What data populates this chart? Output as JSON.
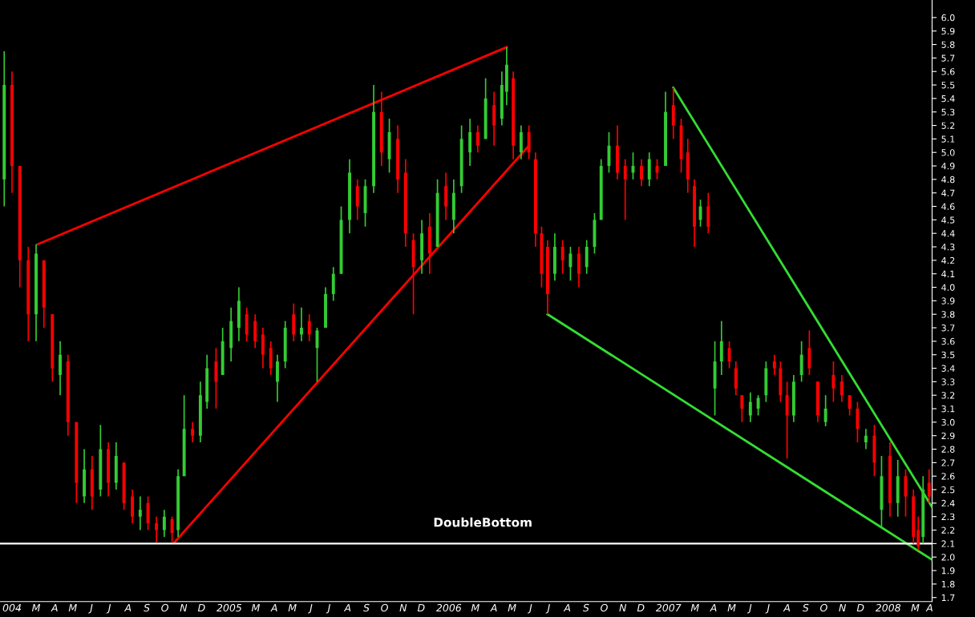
{
  "chart_data": {
    "type": "candlestick",
    "x": [
      "2004-01-17",
      "2004-01-30",
      "2004-02-12",
      "2004-02-26",
      "2004-03-10",
      "2004-03-23",
      "2004-04-06",
      "2004-04-19",
      "2004-05-02",
      "2004-05-16",
      "2004-05-29",
      "2004-06-11",
      "2004-06-25",
      "2004-07-08",
      "2004-07-21",
      "2004-08-03",
      "2004-08-17",
      "2004-08-30",
      "2004-09-12",
      "2004-09-26",
      "2004-10-09",
      "2004-10-22",
      "2004-11-01",
      "2004-11-11",
      "2004-11-25",
      "2004-12-08",
      "2004-12-19",
      "2005-01-03",
      "2005-01-14",
      "2005-01-28",
      "2005-02-10",
      "2005-02-23",
      "2005-03-09",
      "2005-03-22",
      "2005-04-04",
      "2005-04-15",
      "2005-04-28",
      "2005-05-12",
      "2005-05-25",
      "2005-06-07",
      "2005-06-20",
      "2005-07-04",
      "2005-07-17",
      "2005-07-30",
      "2005-08-13",
      "2005-08-26",
      "2005-09-08",
      "2005-09-22",
      "2005-10-05",
      "2005-10-18",
      "2005-11-01",
      "2005-11-14",
      "2005-11-27",
      "2005-12-11",
      "2005-12-24",
      "2006-01-06",
      "2006-01-20",
      "2006-02-02",
      "2006-02-15",
      "2006-03-01",
      "2006-03-14",
      "2006-03-27",
      "2006-04-10",
      "2006-04-23",
      "2006-05-01",
      "2006-05-12",
      "2006-05-25",
      "2006-06-07",
      "2006-06-18",
      "2006-06-28",
      "2006-07-08",
      "2006-07-20",
      "2006-08-02",
      "2006-08-15",
      "2006-08-29",
      "2006-09-11",
      "2006-09-24",
      "2006-10-05",
      "2006-10-18",
      "2006-11-01",
      "2006-11-14",
      "2006-11-27",
      "2006-12-11",
      "2006-12-24",
      "2007-01-06",
      "2007-01-20",
      "2007-02-02",
      "2007-02-15",
      "2007-02-26",
      "2007-03-09",
      "2007-03-19",
      "2007-04-01",
      "2007-04-12",
      "2007-04-23",
      "2007-05-06",
      "2007-05-17",
      "2007-05-27",
      "2007-06-10",
      "2007-06-23",
      "2007-07-06",
      "2007-07-20",
      "2007-07-30",
      "2007-08-10",
      "2007-08-21",
      "2007-09-03",
      "2007-09-16",
      "2007-09-30",
      "2007-10-13",
      "2007-10-26",
      "2007-11-09",
      "2007-11-22",
      "2007-12-05",
      "2007-12-19",
      "2008-01-02",
      "2008-01-14",
      "2008-01-28",
      "2008-02-10",
      "2008-02-23",
      "2008-03-07",
      "2008-03-15",
      "2008-03-23",
      "2008-04-02"
    ],
    "ohlc": [
      [
        4.8,
        5.75,
        4.6,
        5.5
      ],
      [
        5.5,
        5.6,
        4.7,
        4.9
      ],
      [
        4.9,
        4.9,
        4.0,
        4.2
      ],
      [
        4.2,
        4.3,
        3.6,
        3.8
      ],
      [
        3.8,
        4.32,
        3.6,
        4.25
      ],
      [
        4.2,
        4.2,
        3.7,
        3.85
      ],
      [
        3.8,
        3.8,
        3.3,
        3.4
      ],
      [
        3.35,
        3.6,
        3.2,
        3.5
      ],
      [
        3.45,
        3.5,
        2.9,
        3.0
      ],
      [
        3.0,
        3.0,
        2.4,
        2.55
      ],
      [
        2.45,
        2.8,
        2.4,
        2.65
      ],
      [
        2.65,
        2.75,
        2.35,
        2.45
      ],
      [
        2.5,
        2.98,
        2.45,
        2.8
      ],
      [
        2.8,
        2.85,
        2.45,
        2.55
      ],
      [
        2.55,
        2.85,
        2.5,
        2.75
      ],
      [
        2.7,
        2.7,
        2.35,
        2.4
      ],
      [
        2.45,
        2.5,
        2.25,
        2.3
      ],
      [
        2.3,
        2.45,
        2.2,
        2.35
      ],
      [
        2.4,
        2.45,
        2.2,
        2.25
      ],
      [
        2.25,
        2.3,
        2.11,
        2.2
      ],
      [
        2.2,
        2.35,
        2.15,
        2.3
      ],
      [
        2.28,
        2.3,
        2.11,
        2.18
      ],
      [
        2.2,
        2.65,
        2.15,
        2.6
      ],
      [
        2.6,
        3.2,
        2.6,
        2.95
      ],
      [
        2.95,
        3.0,
        2.85,
        2.9
      ],
      [
        2.9,
        3.3,
        2.85,
        3.2
      ],
      [
        3.15,
        3.5,
        3.1,
        3.4
      ],
      [
        3.45,
        3.55,
        3.1,
        3.3
      ],
      [
        3.35,
        3.7,
        3.35,
        3.6
      ],
      [
        3.55,
        3.85,
        3.45,
        3.75
      ],
      [
        3.7,
        4.0,
        3.6,
        3.9
      ],
      [
        3.8,
        3.85,
        3.6,
        3.65
      ],
      [
        3.75,
        3.8,
        3.55,
        3.6
      ],
      [
        3.65,
        3.7,
        3.4,
        3.5
      ],
      [
        3.55,
        3.6,
        3.35,
        3.4
      ],
      [
        3.3,
        3.5,
        3.15,
        3.45
      ],
      [
        3.45,
        3.75,
        3.4,
        3.7
      ],
      [
        3.8,
        3.88,
        3.6,
        3.65
      ],
      [
        3.65,
        3.85,
        3.6,
        3.7
      ],
      [
        3.75,
        3.8,
        3.6,
        3.65
      ],
      [
        3.55,
        3.7,
        3.3,
        3.68
      ],
      [
        3.7,
        4.0,
        3.7,
        3.95
      ],
      [
        3.95,
        4.15,
        3.9,
        4.1
      ],
      [
        4.1,
        4.6,
        4.1,
        4.5
      ],
      [
        4.5,
        4.95,
        4.4,
        4.85
      ],
      [
        4.75,
        4.8,
        4.5,
        4.6
      ],
      [
        4.55,
        4.8,
        4.45,
        4.75
      ],
      [
        4.75,
        5.5,
        4.7,
        5.3
      ],
      [
        5.3,
        5.45,
        4.9,
        5.0
      ],
      [
        4.95,
        5.25,
        4.85,
        5.15
      ],
      [
        5.1,
        5.2,
        4.7,
        4.8
      ],
      [
        4.85,
        4.95,
        4.3,
        4.4
      ],
      [
        4.35,
        4.4,
        3.8,
        4.15
      ],
      [
        4.2,
        4.5,
        4.1,
        4.4
      ],
      [
        4.45,
        4.55,
        4.1,
        4.25
      ],
      [
        4.3,
        4.8,
        4.3,
        4.7
      ],
      [
        4.75,
        4.85,
        4.5,
        4.6
      ],
      [
        4.5,
        4.8,
        4.4,
        4.7
      ],
      [
        4.75,
        5.2,
        4.7,
        5.1
      ],
      [
        5.0,
        5.25,
        4.9,
        5.15
      ],
      [
        5.15,
        5.2,
        5.0,
        5.05
      ],
      [
        5.1,
        5.55,
        5.1,
        5.4
      ],
      [
        5.35,
        5.45,
        5.05,
        5.2
      ],
      [
        5.25,
        5.6,
        5.2,
        5.5
      ],
      [
        5.45,
        5.78,
        5.35,
        5.65
      ],
      [
        5.55,
        5.6,
        4.95,
        5.05
      ],
      [
        5.0,
        5.2,
        4.95,
        5.15
      ],
      [
        5.15,
        5.2,
        4.95,
        5.0
      ],
      [
        4.95,
        5.0,
        4.3,
        4.4
      ],
      [
        4.4,
        4.45,
        4.0,
        4.1
      ],
      [
        4.3,
        4.35,
        3.8,
        3.95
      ],
      [
        4.1,
        4.4,
        4.05,
        4.3
      ],
      [
        4.3,
        4.35,
        4.1,
        4.2
      ],
      [
        4.15,
        4.3,
        4.05,
        4.25
      ],
      [
        4.25,
        4.3,
        4.0,
        4.1
      ],
      [
        4.15,
        4.35,
        4.1,
        4.3
      ],
      [
        4.3,
        4.55,
        4.25,
        4.5
      ],
      [
        4.5,
        4.95,
        4.5,
        4.9
      ],
      [
        4.9,
        5.15,
        4.85,
        5.05
      ],
      [
        5.05,
        5.2,
        4.8,
        4.85
      ],
      [
        4.9,
        4.95,
        4.5,
        4.8
      ],
      [
        4.85,
        5.0,
        4.8,
        4.9
      ],
      [
        4.9,
        4.95,
        4.75,
        4.8
      ],
      [
        4.8,
        5.0,
        4.75,
        4.95
      ],
      [
        4.9,
        4.95,
        4.8,
        4.85
      ],
      [
        4.9,
        5.45,
        4.9,
        5.3
      ],
      [
        5.35,
        5.48,
        5.1,
        5.2
      ],
      [
        5.2,
        5.25,
        4.85,
        4.95
      ],
      [
        5.0,
        5.1,
        4.7,
        4.8
      ],
      [
        4.75,
        4.8,
        4.3,
        4.45
      ],
      [
        4.5,
        4.65,
        4.45,
        4.6
      ],
      [
        4.6,
        4.7,
        4.4,
        4.45
      ],
      [
        3.25,
        3.6,
        3.05,
        3.45
      ],
      [
        3.45,
        3.75,
        3.35,
        3.6
      ],
      [
        3.55,
        3.6,
        3.4,
        3.45
      ],
      [
        3.4,
        3.45,
        3.2,
        3.25
      ],
      [
        3.2,
        3.2,
        3.0,
        3.1
      ],
      [
        3.05,
        3.22,
        3.0,
        3.15
      ],
      [
        3.1,
        3.2,
        3.05,
        3.18
      ],
      [
        3.2,
        3.45,
        3.15,
        3.4
      ],
      [
        3.45,
        3.5,
        3.35,
        3.4
      ],
      [
        3.4,
        3.45,
        3.15,
        3.2
      ],
      [
        3.2,
        3.3,
        2.73,
        3.05
      ],
      [
        3.05,
        3.35,
        3.0,
        3.3
      ],
      [
        3.35,
        3.6,
        3.3,
        3.5
      ],
      [
        3.55,
        3.68,
        3.35,
        3.4
      ],
      [
        3.3,
        3.3,
        3.0,
        3.05
      ],
      [
        3.0,
        3.2,
        2.97,
        3.1
      ],
      [
        3.35,
        3.45,
        3.15,
        3.25
      ],
      [
        3.3,
        3.35,
        3.15,
        3.2
      ],
      [
        3.2,
        3.2,
        3.05,
        3.1
      ],
      [
        3.1,
        3.15,
        2.85,
        2.95
      ],
      [
        2.85,
        2.95,
        2.8,
        2.9
      ],
      [
        2.9,
        2.98,
        2.6,
        2.7
      ],
      [
        2.35,
        2.75,
        2.22,
        2.6
      ],
      [
        2.75,
        2.85,
        2.3,
        2.4
      ],
      [
        2.4,
        2.72,
        2.3,
        2.6
      ],
      [
        2.6,
        2.65,
        2.3,
        2.45
      ],
      [
        2.45,
        2.5,
        2.1,
        2.15
      ],
      [
        2.2,
        2.3,
        2.05,
        2.08
      ],
      [
        2.15,
        2.6,
        2.1,
        2.5
      ],
      [
        2.55,
        2.65,
        2.4,
        2.45
      ]
    ],
    "colors": [
      "#33cc33",
      "#ff0000",
      "#ff0000",
      "#ff0000",
      "#33cc33",
      "#ff0000",
      "#ff0000",
      "#33cc33",
      "#ff0000",
      "#ff0000",
      "#33cc33",
      "#ff0000",
      "#33cc33",
      "#ff0000",
      "#33cc33",
      "#ff0000",
      "#ff0000",
      "#33cc33",
      "#ff0000",
      "#ff0000",
      "#33cc33",
      "#ff0000",
      "#33cc33",
      "#33cc33",
      "#ff0000",
      "#33cc33",
      "#33cc33",
      "#ff0000",
      "#33cc33",
      "#33cc33",
      "#33cc33",
      "#ff0000",
      "#ff0000",
      "#ff0000",
      "#ff0000",
      "#33cc33",
      "#33cc33",
      "#ff0000",
      "#33cc33",
      "#ff0000",
      "#33cc33",
      "#33cc33",
      "#33cc33",
      "#33cc33",
      "#33cc33",
      "#ff0000",
      "#33cc33",
      "#33cc33",
      "#ff0000",
      "#33cc33",
      "#ff0000",
      "#ff0000",
      "#ff0000",
      "#33cc33",
      "#ff0000",
      "#33cc33",
      "#ff0000",
      "#33cc33",
      "#33cc33",
      "#33cc33",
      "#ff0000",
      "#33cc33",
      "#ff0000",
      "#33cc33",
      "#33cc33",
      "#ff0000",
      "#33cc33",
      "#ff0000",
      "#ff0000",
      "#ff0000",
      "#ff0000",
      "#33cc33",
      "#ff0000",
      "#33cc33",
      "#ff0000",
      "#33cc33",
      "#33cc33",
      "#33cc33",
      "#33cc33",
      "#ff0000",
      "#ff0000",
      "#33cc33",
      "#ff0000",
      "#33cc33",
      "#ff0000",
      "#33cc33",
      "#ff0000",
      "#ff0000",
      "#ff0000",
      "#ff0000",
      "#33cc33",
      "#ff0000",
      "#33cc33",
      "#33cc33",
      "#ff0000",
      "#ff0000",
      "#ff0000",
      "#33cc33",
      "#33cc33",
      "#33cc33",
      "#ff0000",
      "#ff0000",
      "#ff0000",
      "#33cc33",
      "#33cc33",
      "#ff0000",
      "#ff0000",
      "#33cc33",
      "#ff0000",
      "#ff0000",
      "#ff0000",
      "#ff0000",
      "#33cc33",
      "#ff0000",
      "#33cc33",
      "#ff0000",
      "#33cc33",
      "#ff0000",
      "#ff0000",
      "#ff0000",
      "#33cc33",
      "#ff0000"
    ],
    "series": [
      {
        "type": "line",
        "x": [
          "2004-03-13",
          "2006-05-01"
        ],
        "values": [
          4.32,
          5.78
        ],
        "color": "#ff0000"
      },
      {
        "type": "line",
        "x": [
          "2004-10-26",
          "2006-06-07"
        ],
        "values": [
          2.11,
          5.05
        ],
        "color": "#ff0000"
      },
      {
        "type": "line",
        "x": [
          "2006-07-08",
          "2008-04-07"
        ],
        "values": [
          3.8,
          1.98
        ],
        "color": "#33dd33"
      },
      {
        "type": "line",
        "x": [
          "2007-02-02",
          "2008-04-07"
        ],
        "values": [
          5.48,
          2.37
        ],
        "color": "#33dd33"
      }
    ],
    "ref_lines": [
      {
        "axis": "y",
        "value": 2.1,
        "color": "#ffffff"
      }
    ],
    "annotations": [
      "DoubleBottom"
    ],
    "xlim": [
      "2004-01-10",
      "2008-04-07"
    ],
    "xticks": [
      {
        "value": "2004-01-30",
        "label": "004"
      },
      {
        "value": "2004-03-10",
        "label": "M"
      },
      {
        "value": "2004-04-10",
        "label": "A"
      },
      {
        "value": "2004-05-10",
        "label": "M"
      },
      {
        "value": "2004-06-10",
        "label": "J"
      },
      {
        "value": "2004-07-10",
        "label": "J"
      },
      {
        "value": "2004-08-10",
        "label": "A"
      },
      {
        "value": "2004-09-10",
        "label": "S"
      },
      {
        "value": "2004-10-10",
        "label": "O"
      },
      {
        "value": "2004-11-10",
        "label": "N"
      },
      {
        "value": "2004-12-10",
        "label": "D"
      },
      {
        "value": "2005-01-25",
        "label": "2005"
      },
      {
        "value": "2005-03-10",
        "label": "M"
      },
      {
        "value": "2005-04-10",
        "label": "A"
      },
      {
        "value": "2005-05-10",
        "label": "M"
      },
      {
        "value": "2005-06-10",
        "label": "J"
      },
      {
        "value": "2005-07-10",
        "label": "J"
      },
      {
        "value": "2005-08-10",
        "label": "A"
      },
      {
        "value": "2005-09-10",
        "label": "S"
      },
      {
        "value": "2005-10-10",
        "label": "O"
      },
      {
        "value": "2005-11-10",
        "label": "N"
      },
      {
        "value": "2005-12-10",
        "label": "D"
      },
      {
        "value": "2006-01-25",
        "label": "2006"
      },
      {
        "value": "2006-03-10",
        "label": "M"
      },
      {
        "value": "2006-04-10",
        "label": "A"
      },
      {
        "value": "2006-05-10",
        "label": "M"
      },
      {
        "value": "2006-06-10",
        "label": "J"
      },
      {
        "value": "2006-07-10",
        "label": "J"
      },
      {
        "value": "2006-08-10",
        "label": "A"
      },
      {
        "value": "2006-09-10",
        "label": "S"
      },
      {
        "value": "2006-10-10",
        "label": "O"
      },
      {
        "value": "2006-11-10",
        "label": "N"
      },
      {
        "value": "2006-12-10",
        "label": "D"
      },
      {
        "value": "2007-01-25",
        "label": "2007"
      },
      {
        "value": "2007-03-10",
        "label": "M"
      },
      {
        "value": "2007-04-10",
        "label": "A"
      },
      {
        "value": "2007-05-10",
        "label": "M"
      },
      {
        "value": "2007-06-10",
        "label": "J"
      },
      {
        "value": "2007-07-10",
        "label": "J"
      },
      {
        "value": "2007-08-10",
        "label": "A"
      },
      {
        "value": "2007-09-10",
        "label": "S"
      },
      {
        "value": "2007-10-10",
        "label": "O"
      },
      {
        "value": "2007-11-10",
        "label": "N"
      },
      {
        "value": "2007-12-10",
        "label": "D"
      },
      {
        "value": "2008-01-25",
        "label": "2008"
      },
      {
        "value": "2008-03-10",
        "label": "M"
      },
      {
        "value": "2008-04-03",
        "label": "A"
      }
    ],
    "ylim": [
      1.67,
      6.13
    ],
    "yticks": [
      1.7,
      1.8,
      1.9,
      {
        "value": 2,
        "label": "2.0"
      },
      2.1,
      2.2,
      2.3,
      2.4,
      2.5,
      2.6,
      2.7,
      2.8,
      2.9,
      {
        "value": 3,
        "label": "3.0"
      },
      3.1,
      3.2,
      3.3,
      3.4,
      3.5,
      3.6,
      3.7,
      3.8,
      3.9,
      {
        "value": 4,
        "label": "4.0"
      },
      4.1,
      4.2,
      4.3,
      4.4,
      4.5,
      4.6,
      4.7,
      4.8,
      4.9,
      {
        "value": 5,
        "label": "5.0"
      },
      5.1,
      5.2,
      5.3,
      5.4,
      5.5,
      5.6,
      5.7,
      5.8,
      5.9,
      {
        "value": 6,
        "label": "6.0"
      }
    ],
    "grid": false
  }
}
